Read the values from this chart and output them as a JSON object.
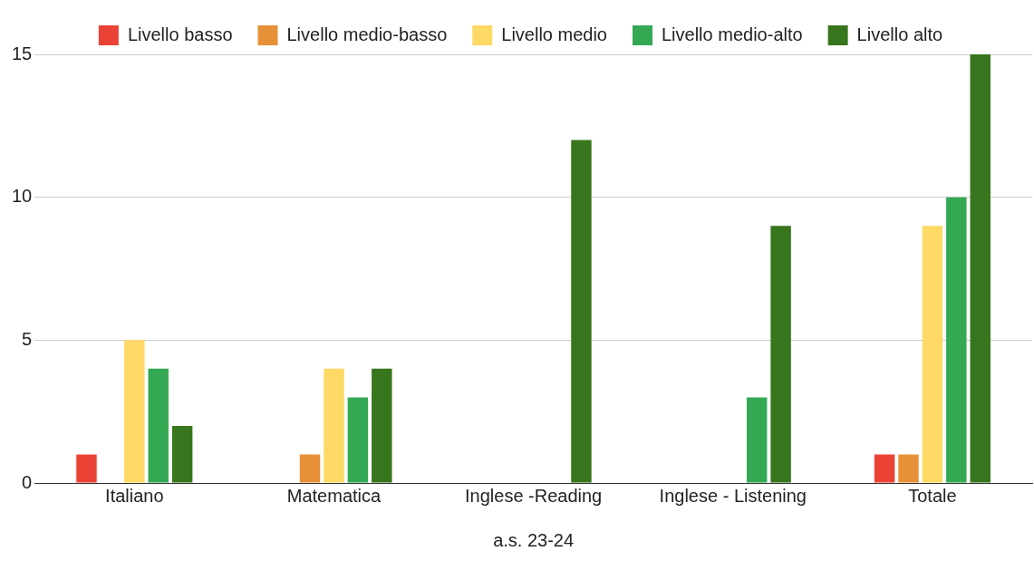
{
  "chart_data": {
    "type": "bar",
    "xlabel": "a.s. 23-24",
    "categories": [
      "Italiano",
      "Matematica",
      "Inglese -Reading",
      "Inglese - Listening",
      "Totale"
    ],
    "series": [
      {
        "name": "Livello basso",
        "color": "#ea4335",
        "values": [
          1,
          0,
          0,
          0,
          1
        ]
      },
      {
        "name": "Livello medio-basso",
        "color": "#e69138",
        "values": [
          0,
          1,
          0,
          0,
          1
        ]
      },
      {
        "name": "Livello medio",
        "color": "#ffd966",
        "values": [
          5,
          4,
          0,
          0,
          9
        ]
      },
      {
        "name": "Livello medio-alto",
        "color": "#34a853",
        "values": [
          4,
          3,
          0,
          3,
          10
        ]
      },
      {
        "name": "Livello alto",
        "color": "#38761d",
        "values": [
          2,
          4,
          12,
          9,
          15
        ]
      }
    ],
    "ylim": [
      0,
      15
    ],
    "yticks": [
      0,
      5,
      10,
      15
    ],
    "grid": "y",
    "legend": "top"
  }
}
